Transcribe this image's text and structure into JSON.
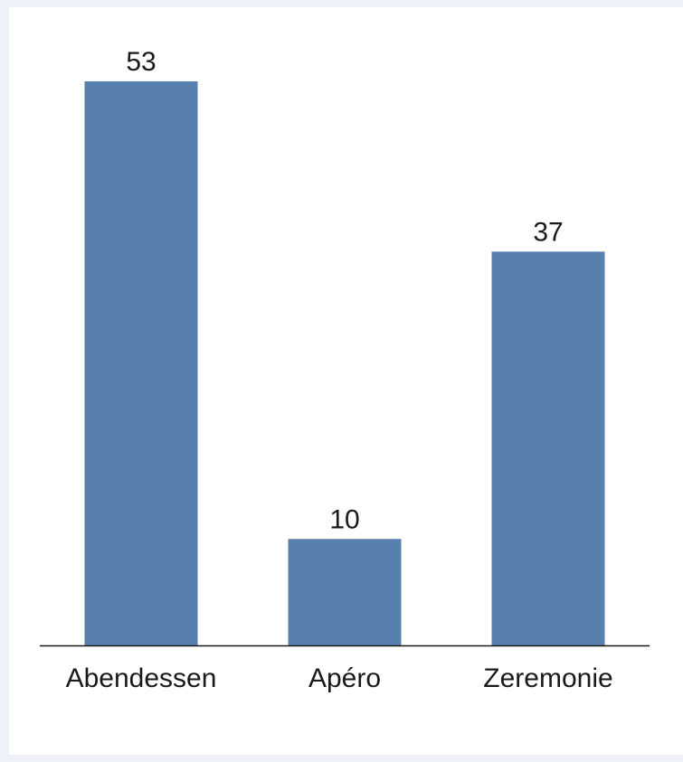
{
  "chart_data": {
    "type": "bar",
    "categories": [
      "Abendessen",
      "Apéro",
      "Zeremonie"
    ],
    "values": [
      53,
      10,
      37
    ],
    "value_labels": [
      "53",
      "10",
      "37"
    ],
    "title": "",
    "xlabel": "",
    "ylabel": "",
    "ylim": [
      0,
      53
    ],
    "grid": false,
    "legend": "none",
    "bar_color": "#5880AE",
    "axis_color": "#1a1a1a",
    "background_color": "#FFFFFF",
    "outer_background_color": "#EEF1F7"
  }
}
